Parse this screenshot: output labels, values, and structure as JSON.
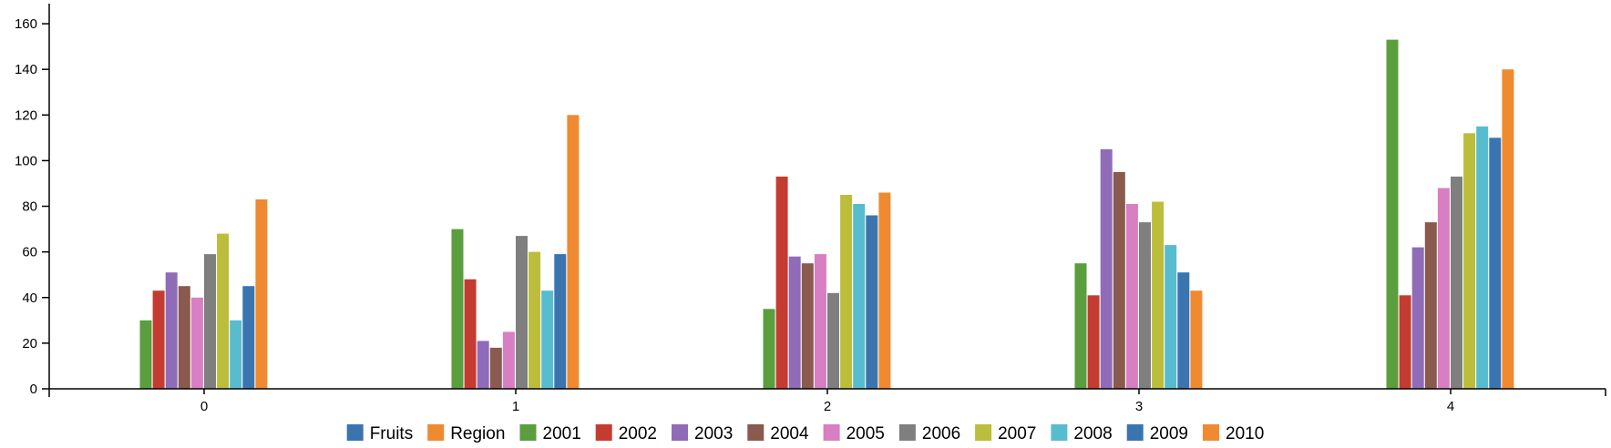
{
  "chart_data": {
    "type": "bar",
    "categories": [
      "0",
      "1",
      "2",
      "3",
      "4"
    ],
    "ylim": [
      0,
      168
    ],
    "yticks": [
      0,
      20,
      40,
      60,
      80,
      100,
      120,
      140,
      160
    ],
    "grid": false,
    "legend_position": "bottom",
    "legend": [
      {
        "name": "Fruits",
        "color": "#3a75b0"
      },
      {
        "name": "Region",
        "color": "#ef8a30"
      },
      {
        "name": "2001",
        "color": "#5a9e3d"
      },
      {
        "name": "2002",
        "color": "#c43c31"
      },
      {
        "name": "2003",
        "color": "#8f6bb8"
      },
      {
        "name": "2004",
        "color": "#8a5a4e"
      },
      {
        "name": "2005",
        "color": "#d77fc2"
      },
      {
        "name": "2006",
        "color": "#7f7f7f"
      },
      {
        "name": "2007",
        "color": "#bcbd3a"
      },
      {
        "name": "2008",
        "color": "#58bccf"
      },
      {
        "name": "2009",
        "color": "#3a75b0"
      },
      {
        "name": "2010",
        "color": "#ef8a30"
      }
    ],
    "series": [
      {
        "name": "2001",
        "color": "#5a9e3d",
        "values": [
          30,
          70,
          35,
          55,
          153
        ]
      },
      {
        "name": "2002",
        "color": "#c43c31",
        "values": [
          43,
          48,
          93,
          41,
          41
        ]
      },
      {
        "name": "2003",
        "color": "#8f6bb8",
        "values": [
          51,
          21,
          58,
          105,
          62
        ]
      },
      {
        "name": "2004",
        "color": "#8a5a4e",
        "values": [
          45,
          18,
          55,
          95,
          73
        ]
      },
      {
        "name": "2005",
        "color": "#d77fc2",
        "values": [
          40,
          25,
          59,
          81,
          88
        ]
      },
      {
        "name": "2006",
        "color": "#7f7f7f",
        "values": [
          59,
          67,
          42,
          73,
          93
        ]
      },
      {
        "name": "2007",
        "color": "#bcbd3a",
        "values": [
          68,
          60,
          85,
          82,
          112
        ]
      },
      {
        "name": "2008",
        "color": "#58bccf",
        "values": [
          30,
          43,
          81,
          63,
          115
        ]
      },
      {
        "name": "2009",
        "color": "#3a75b0",
        "values": [
          45,
          59,
          76,
          51,
          110
        ]
      },
      {
        "name": "2010",
        "color": "#ef8a30",
        "values": [
          83,
          120,
          86,
          43,
          140
        ]
      }
    ]
  }
}
